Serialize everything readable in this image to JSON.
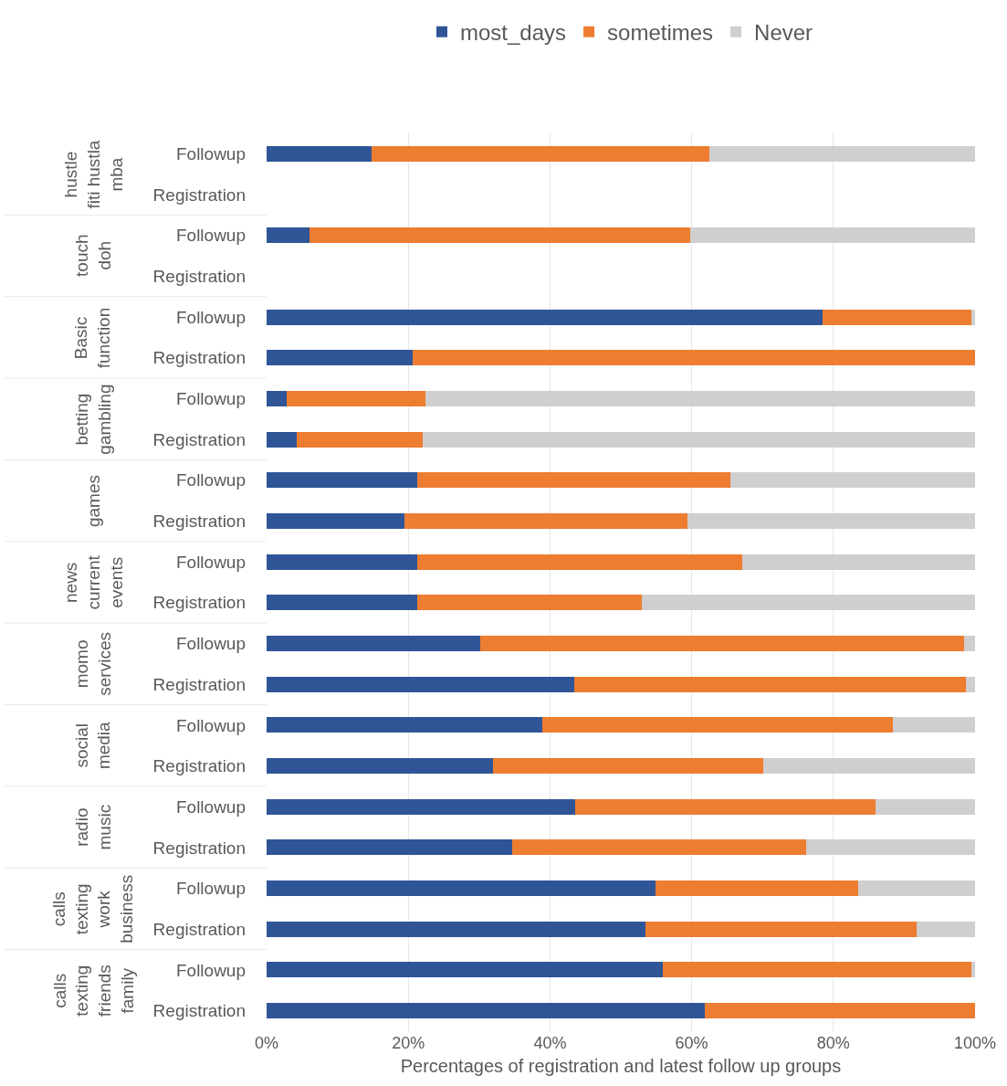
{
  "chart_data": {
    "type": "bar",
    "orientation": "horizontal",
    "stacked": true,
    "xlabel": "Percentages of registration and latest follow up groups",
    "categories": [
      "Followup",
      "Registration",
      "Followup",
      "Registration",
      "Followup",
      "Registration",
      "Followup",
      "Registration",
      "Followup",
      "Registration",
      "Followup",
      "Registration",
      "Followup",
      "Registration",
      "Followup",
      "Registration",
      "Followup",
      "Registration",
      "Followup",
      "Registration",
      "Followup",
      "Registration"
    ],
    "annotations": [
      "hustle\nfiti hustla\nmba",
      "touch\ndoh",
      "Basic\nfunction",
      "betting\ngambling",
      "games",
      "news\ncurrent\nevents",
      "momo\nservices",
      "social\nmedia",
      "radio\nmusic",
      "calls\ntexting\nwork\nbusiness",
      "calls\ntexting\nfriends\nfamily"
    ],
    "series": [
      {
        "name": "most_days",
        "color": "#2f5597",
        "values": [
          14.8,
          null,
          6.0,
          null,
          78.5,
          20.6,
          2.8,
          4.2,
          21.3,
          19.5,
          21.3,
          21.3,
          30.2,
          43.4,
          38.9,
          31.9,
          43.6,
          34.7,
          54.9,
          53.5,
          55.9,
          61.8
        ]
      },
      {
        "name": "sometimes",
        "color": "#ed7d31",
        "values": [
          47.7,
          null,
          53.8,
          null,
          21.0,
          79.4,
          19.6,
          17.8,
          44.1,
          39.9,
          45.9,
          31.7,
          68.3,
          55.3,
          49.5,
          38.2,
          42.4,
          41.5,
          28.6,
          38.3,
          43.6,
          38.2
        ]
      },
      {
        "name": "Never",
        "color": "#d0cece",
        "values": [
          37.5,
          null,
          40.2,
          null,
          0.5,
          0,
          77.6,
          78.0,
          34.6,
          40.6,
          32.8,
          47.0,
          1.5,
          1.3,
          11.6,
          29.9,
          14.0,
          23.8,
          16.5,
          8.2,
          0.5,
          0
        ]
      }
    ],
    "xlim": [
      0,
      100
    ],
    "xticks": [
      {
        "value": 0,
        "label": "0%"
      },
      {
        "value": 20,
        "label": "20%"
      },
      {
        "value": 40,
        "label": "40%"
      },
      {
        "value": 60,
        "label": "60%"
      },
      {
        "value": 80,
        "label": "80%"
      },
      {
        "value": 100,
        "label": "100%"
      }
    ],
    "grid": "x",
    "legend": "top"
  }
}
